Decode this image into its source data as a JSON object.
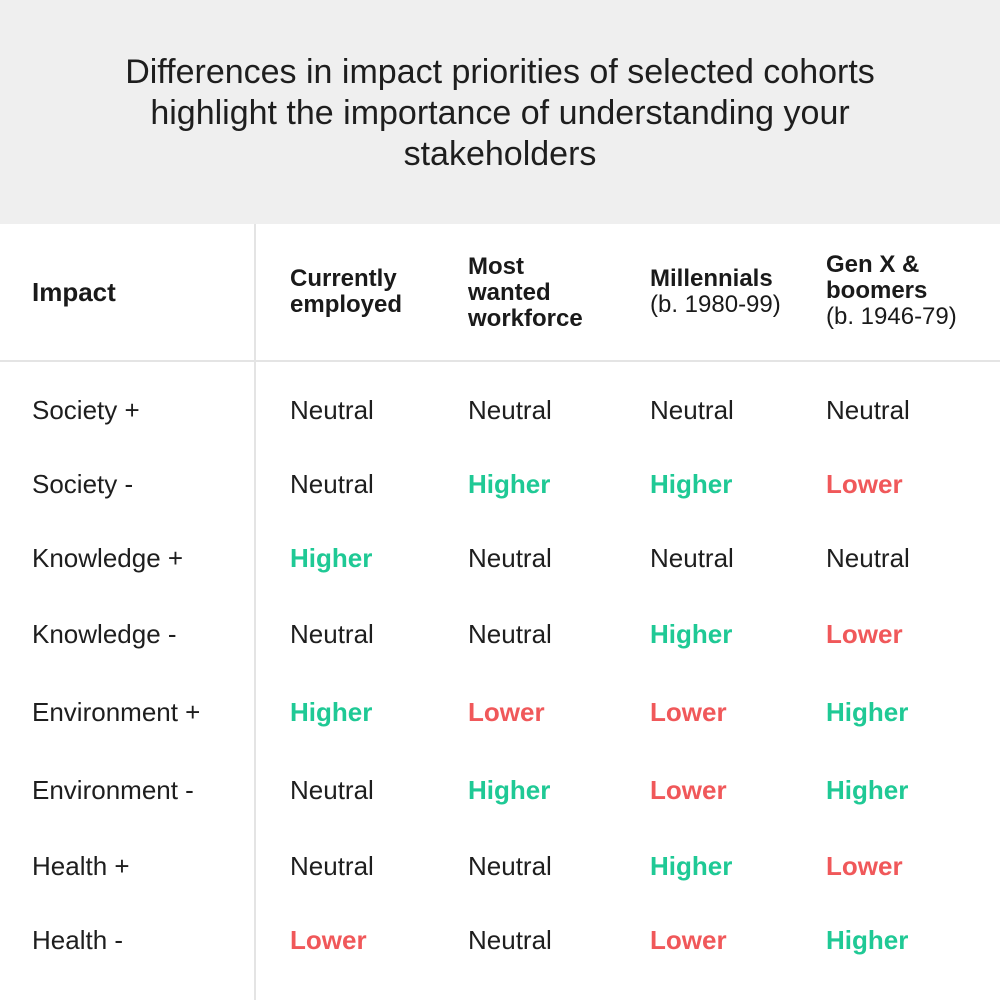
{
  "title": "Differences in impact priorities of selected cohorts highlight the importance of understanding your stakeholders",
  "colors": {
    "higher": "#1fc995",
    "lower": "#f0585a",
    "neutral": "#1e1e1e",
    "banner_bg": "#efefef"
  },
  "chart_data": {
    "type": "table",
    "title": "Differences in impact priorities of selected cohorts highlight the importance of understanding your stakeholders",
    "row_header": "Impact",
    "columns": [
      {
        "lines": [
          "Currently",
          "employed"
        ],
        "sub": ""
      },
      {
        "lines": [
          "Most",
          "wanted",
          "workforce"
        ],
        "sub": ""
      },
      {
        "lines": [
          "Millennials"
        ],
        "sub": "(b. 1980-99)"
      },
      {
        "lines": [
          "Gen X &",
          "boomers"
        ],
        "sub": "(b. 1946-79)"
      }
    ],
    "rows": [
      {
        "label": "Society +",
        "values": [
          "Neutral",
          "Neutral",
          "Neutral",
          "Neutral"
        ]
      },
      {
        "label": "Society -",
        "values": [
          "Neutral",
          "Higher",
          "Higher",
          "Lower"
        ]
      },
      {
        "label": "Knowledge +",
        "values": [
          "Higher",
          "Neutral",
          "Neutral",
          "Neutral"
        ]
      },
      {
        "label": "Knowledge -",
        "values": [
          "Neutral",
          "Neutral",
          "Higher",
          "Lower"
        ]
      },
      {
        "label": "Environment +",
        "values": [
          "Higher",
          "Lower",
          "Lower",
          "Higher"
        ]
      },
      {
        "label": "Environment -",
        "values": [
          "Neutral",
          "Higher",
          "Lower",
          "Higher"
        ]
      },
      {
        "label": "Health +",
        "values": [
          "Neutral",
          "Neutral",
          "Higher",
          "Lower"
        ]
      },
      {
        "label": "Health -",
        "values": [
          "Lower",
          "Neutral",
          "Lower",
          "Higher"
        ]
      }
    ]
  }
}
